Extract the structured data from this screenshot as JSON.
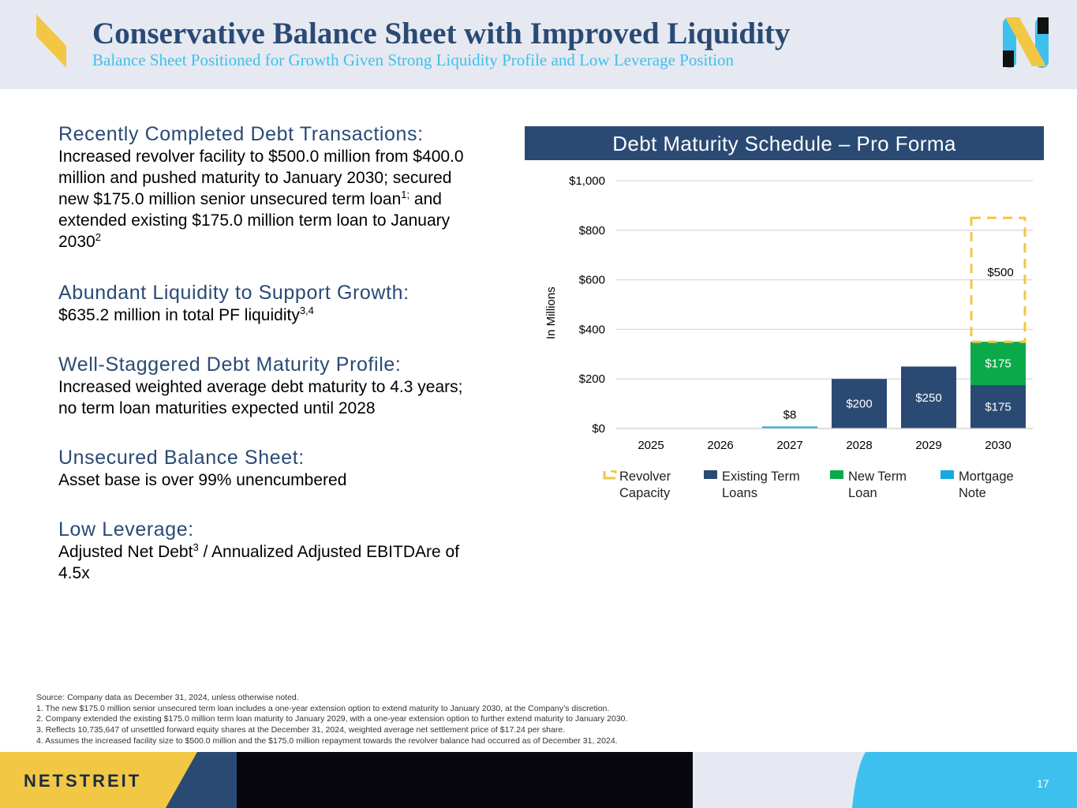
{
  "header": {
    "title": "Conservative Balance Sheet with Improved Liquidity",
    "subtitle": "Balance Sheet Positioned for Growth Given Strong Liquidity Profile and Low Leverage Position"
  },
  "sections": [
    {
      "heading": "Recently Completed Debt Transactions:",
      "body_1": "Increased revolver facility to $500.0 million from $400.0",
      "body_2": "million and pushed maturity to January 2030; secured",
      "body_3a": "new $175.0 million senior unsecured term loan",
      "body_3sup": "1;",
      "body_3b": " and",
      "body_4": "extended existing $175.0 million term loan to January",
      "body_5a": "2030",
      "body_5sup": "2"
    },
    {
      "heading": "Abundant Liquidity to Support Growth:",
      "body_a": "$635.2 million in total PF liquidity",
      "body_sup": "3,4"
    },
    {
      "heading": "Well-Staggered Debt Maturity Profile:",
      "body_1": "Increased weighted average debt maturity to 4.3 years;",
      "body_2": "no term loan maturities expected until 2028"
    },
    {
      "heading": "Unsecured Balance Sheet:",
      "body_1": "Asset base is over 99% unencumbered"
    },
    {
      "heading": "Low Leverage:",
      "body_a": "Adjusted Net Debt",
      "body_sup": "3",
      "body_b": " / Annualized Adjusted EBITDAre of",
      "body_2": "4.5x"
    }
  ],
  "chart": {
    "banner": "Debt Maturity Schedule – Pro Forma",
    "ylabel": "In Millions",
    "legend": [
      {
        "line1": "Revolver",
        "line2": "Capacity",
        "color": "#f2c744"
      },
      {
        "line1": "Existing Term",
        "line2": "Loans",
        "color": "#2a4a74"
      },
      {
        "line1": "New Term",
        "line2": "Loan",
        "color": "#0aaa4b"
      },
      {
        "line1": "Mortgage",
        "line2": "Note",
        "color": "#17a9e1"
      }
    ]
  },
  "chart_data": {
    "type": "bar",
    "stacked": true,
    "categories": [
      "2025",
      "2026",
      "2027",
      "2028",
      "2029",
      "2030"
    ],
    "ylim": [
      0,
      1000
    ],
    "yticks": [
      0,
      200,
      400,
      600,
      800,
      1000
    ],
    "ytick_labels": [
      "$0",
      "$200",
      "$400",
      "$600",
      "$800",
      "$1,000"
    ],
    "grid": true,
    "legend_position": "bottom",
    "series": [
      {
        "name": "Mortgage Note",
        "color": "#17a9e1",
        "values": [
          0,
          0,
          8,
          0,
          0,
          0
        ],
        "labels": [
          "",
          "",
          "$8",
          "",
          "",
          ""
        ],
        "label_pos": "above"
      },
      {
        "name": "Existing Term Loans",
        "color": "#2a4a74",
        "values": [
          0,
          0,
          0,
          200,
          250,
          175
        ],
        "labels": [
          "",
          "",
          "",
          "$200",
          "$250",
          "$175"
        ],
        "label_pos": "inside"
      },
      {
        "name": "New Term Loan",
        "color": "#0aaa4b",
        "values": [
          0,
          0,
          0,
          0,
          0,
          175
        ],
        "labels": [
          "",
          "",
          "",
          "",
          "",
          "$175"
        ],
        "label_pos": "inside"
      },
      {
        "name": "Revolver Capacity",
        "color": "#f2c744",
        "style": "dashed-outline",
        "values": [
          0,
          0,
          0,
          0,
          0,
          500
        ],
        "labels": [
          "",
          "",
          "",
          "",
          "",
          "$500"
        ],
        "label_pos": "inside"
      }
    ]
  },
  "footnotes": [
    "Source: Company data as December 31, 2024, unless otherwise noted.",
    "1.   The new $175.0 million senior unsecured term loan includes a one-year extension option to extend maturity to January 2030, at the Company’s discretion.",
    "2.   Company extended the existing $175.0 million term loan maturity to January 2029, with a one-year extension option to further extend maturity to January 2030.",
    "3.   Reflects 10,735,647 of unsettled forward equity shares at the December 31, 2024, weighted average net settlement price of $17.24 per share.",
    "4.   Assumes the increased facility size to $500.0 million and the $175.0 million repayment towards the revolver balance had occurred as of December 31, 2024."
  ],
  "footer": {
    "brand": "NETSTREIT",
    "page_number": "17"
  }
}
